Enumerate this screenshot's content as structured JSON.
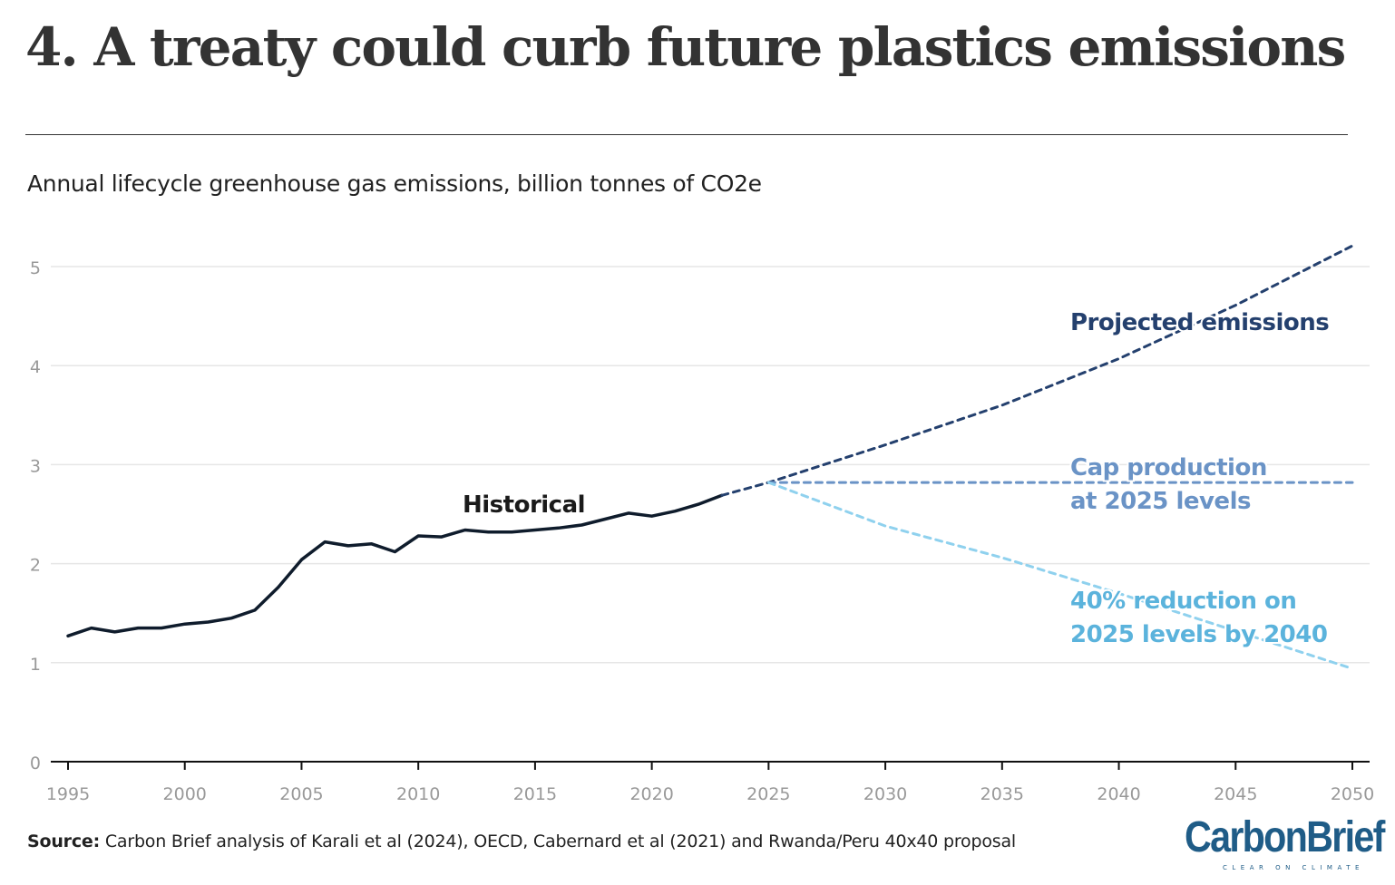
{
  "title": "4. A treaty could curb future plastics emissions",
  "subtitle": "Annual lifecycle greenhouse gas emissions, billion tonnes of CO2e",
  "source": {
    "label": "Source:",
    "text": " Carbon Brief analysis of Karali et al (2024), OECD, Cabernard et al (2021) and Rwanda/Peru 40x40 proposal"
  },
  "logo": {
    "name": "CarbonBrief",
    "tagline": "CLEAR ON CLIMATE"
  },
  "chart_data": {
    "type": "line",
    "title": "",
    "ylabel": "Annual lifecycle greenhouse gas emissions, billion tonnes of CO2e",
    "xlabel": "",
    "xlim": [
      1995,
      2050
    ],
    "ylim": [
      0,
      5.4
    ],
    "yticks": [
      0,
      1,
      2,
      3,
      4,
      5
    ],
    "xticks": [
      1995,
      2000,
      2005,
      2010,
      2015,
      2020,
      2025,
      2030,
      2035,
      2040,
      2045,
      2050
    ],
    "grid": true,
    "series": [
      {
        "name": "Historical",
        "color": "#0f1c2c",
        "dash": false,
        "x": [
          1995,
          1996,
          1997,
          1998,
          1999,
          2000,
          2001,
          2002,
          2003,
          2004,
          2005,
          2006,
          2007,
          2008,
          2009,
          2010,
          2011,
          2012,
          2013,
          2014,
          2015,
          2016,
          2017,
          2018,
          2019,
          2020,
          2021,
          2022,
          2023
        ],
        "y": [
          1.27,
          1.35,
          1.31,
          1.35,
          1.35,
          1.39,
          1.41,
          1.45,
          1.53,
          1.76,
          2.04,
          2.22,
          2.18,
          2.2,
          2.12,
          2.28,
          2.27,
          2.34,
          2.32,
          2.32,
          2.34,
          2.36,
          2.39,
          2.45,
          2.51,
          2.48,
          2.53,
          2.6,
          2.69
        ]
      },
      {
        "name": "Projected emissions",
        "color": "#24406e",
        "dash": true,
        "x": [
          2023,
          2025,
          2030,
          2035,
          2040,
          2045,
          2050
        ],
        "y": [
          2.69,
          2.82,
          3.2,
          3.6,
          4.07,
          4.61,
          5.21
        ]
      },
      {
        "name": "Cap production at 2025 levels",
        "color": "#6a93c6",
        "dash": true,
        "x": [
          2025,
          2050
        ],
        "y": [
          2.82,
          2.82
        ]
      },
      {
        "name": "40% reduction on 2025 levels by 2040",
        "color": "#8fd1ee",
        "dash": true,
        "x": [
          2025,
          2030,
          2035,
          2040,
          2045,
          2050
        ],
        "y": [
          2.82,
          2.38,
          2.06,
          1.7,
          1.32,
          0.94
        ]
      }
    ],
    "annotations": [
      {
        "text": "Historical",
        "color": "#1a1a1a"
      },
      {
        "text": "Projected emissions",
        "color": "#24406e"
      },
      {
        "text": "Cap production",
        "color": "#6a93c6"
      },
      {
        "text": "at 2025 levels",
        "color": "#6a93c6"
      },
      {
        "text": "40% reduction on",
        "color": "#5bb3dc"
      },
      {
        "text": "2025 levels by 2040",
        "color": "#5bb3dc"
      }
    ]
  }
}
